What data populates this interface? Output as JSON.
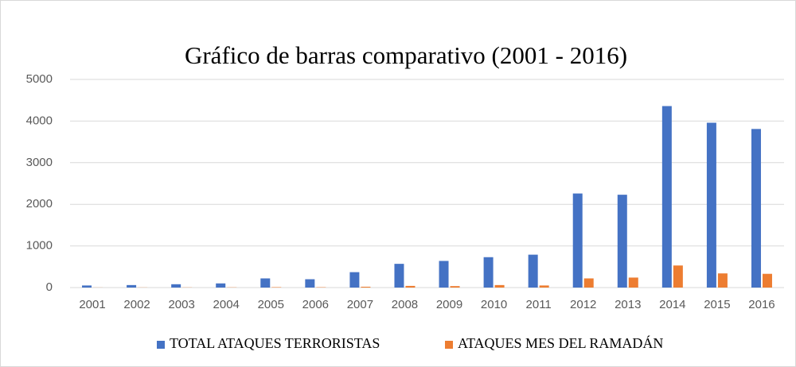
{
  "chart_data": {
    "type": "bar",
    "title": "Gráfico de barras comparativo (2001 - 2016)",
    "categories": [
      "2001",
      "2002",
      "2003",
      "2004",
      "2005",
      "2006",
      "2007",
      "2008",
      "2009",
      "2010",
      "2011",
      "2012",
      "2013",
      "2014",
      "2015",
      "2016"
    ],
    "series": [
      {
        "name": "TOTAL ATAQUES TERRORISTAS",
        "color": "#4472c4",
        "values": [
          50,
          60,
          80,
          100,
          220,
          200,
          370,
          570,
          640,
          730,
          790,
          2260,
          2230,
          4360,
          3960,
          3810
        ]
      },
      {
        "name": "ATAQUES MES DEL RAMADÁN",
        "color": "#ed7d31",
        "values": [
          2,
          3,
          4,
          5,
          10,
          8,
          20,
          40,
          35,
          60,
          50,
          220,
          240,
          530,
          340,
          330
        ]
      }
    ],
    "ylim": [
      0,
      5000
    ],
    "yticks": [
      0,
      1000,
      2000,
      3000,
      4000,
      5000
    ],
    "grid": true,
    "legend": "bottom"
  }
}
